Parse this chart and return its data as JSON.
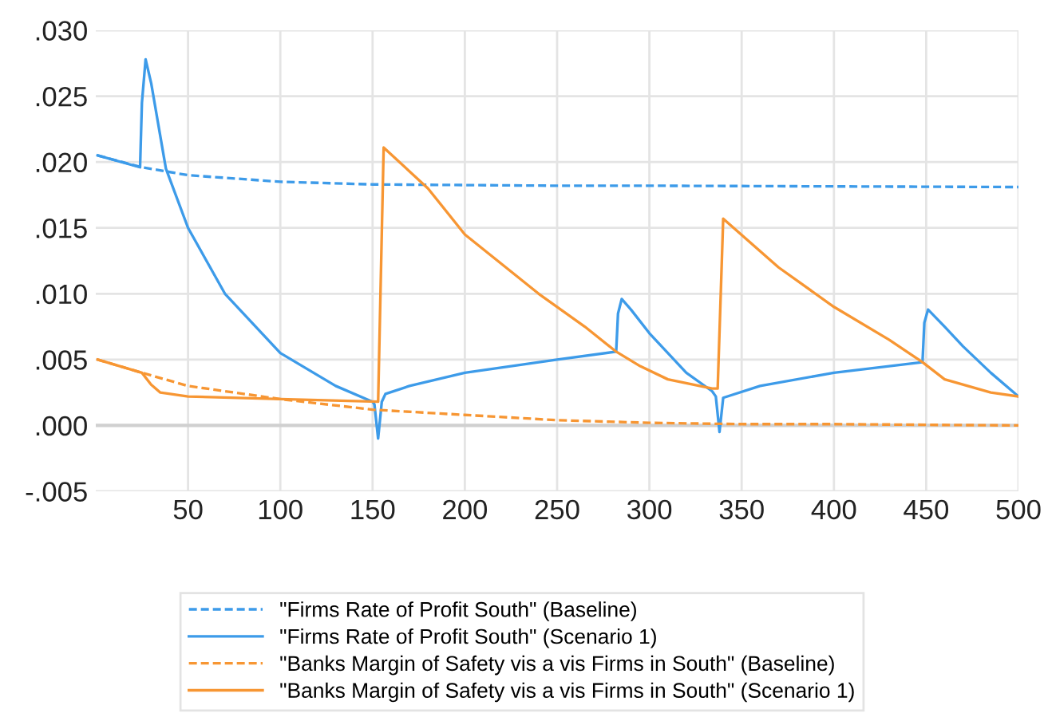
{
  "chart_data": {
    "type": "line",
    "xlim": [
      0,
      500
    ],
    "xticks": [
      50,
      100,
      150,
      200,
      250,
      300,
      350,
      400,
      450,
      500
    ],
    "ylim": [
      -0.005,
      0.03
    ],
    "yticks": [
      {
        "value": -0.005,
        "label": "-.005"
      },
      {
        "value": 0,
        "label": ".000"
      },
      {
        "value": 0.005,
        "label": ".005"
      },
      {
        "value": 0.01,
        "label": ".010"
      },
      {
        "value": 0.015,
        "label": ".015"
      },
      {
        "value": 0.02,
        "label": ".020"
      },
      {
        "value": 0.025,
        "label": ".025"
      },
      {
        "value": 0.03,
        "label": ".030"
      }
    ],
    "grid": true,
    "legend": "bottom",
    "ref_lines": [
      {
        "axis": "y",
        "value": 0,
        "color": "#d0d0d0"
      }
    ],
    "series": [
      {
        "name": "\"Firms Rate of Profit South\" (Baseline)",
        "color": "#3d9be9",
        "line_style": "dashed",
        "x": [
          1,
          25,
          50,
          100,
          150,
          250,
          300,
          500
        ],
        "values": [
          0.0205,
          0.0196,
          0.019,
          0.0185,
          0.0183,
          0.0182,
          0.0182,
          0.0181
        ]
      },
      {
        "name": "\"Firms Rate of Profit South\" (Scenario 1)",
        "color": "#3d9be9",
        "line_style": "solid",
        "x": [
          1,
          24,
          25,
          27,
          30,
          38,
          50,
          70,
          100,
          130,
          150,
          151,
          153,
          155,
          157,
          170,
          200,
          250,
          282,
          283,
          285,
          290,
          300,
          320,
          334,
          336,
          338,
          340,
          360,
          400,
          448,
          449,
          451,
          460,
          470,
          485,
          500
        ],
        "values": [
          0.0205,
          0.0196,
          0.0245,
          0.0278,
          0.026,
          0.0195,
          0.015,
          0.01,
          0.0055,
          0.003,
          0.0018,
          0.0016,
          -0.001,
          0.0018,
          0.0024,
          0.003,
          0.004,
          0.005,
          0.0056,
          0.0085,
          0.0096,
          0.0088,
          0.007,
          0.004,
          0.0026,
          0.0022,
          -0.0005,
          0.0021,
          0.003,
          0.004,
          0.0048,
          0.0078,
          0.0088,
          0.0075,
          0.006,
          0.004,
          0.0022
        ]
      },
      {
        "name": "\"Banks Margin of Safety vis a vis Firms in South\" (Baseline)",
        "color": "#f79633",
        "line_style": "dashed",
        "x": [
          1,
          25,
          50,
          100,
          150,
          200,
          250,
          300,
          350,
          400,
          500
        ],
        "values": [
          0.005,
          0.004,
          0.003,
          0.002,
          0.0012,
          0.0008,
          0.0004,
          0.0002,
          0.0001,
          0.0001,
          0.0
        ]
      },
      {
        "name": "\"Banks Margin of Safety vis a vis Firms in South\" (Scenario 1)",
        "color": "#f79633",
        "line_style": "solid",
        "x": [
          1,
          25,
          30,
          35,
          50,
          100,
          153,
          156,
          180,
          200,
          240,
          265,
          282,
          295,
          310,
          334,
          337,
          340,
          370,
          400,
          430,
          448,
          460,
          485,
          500
        ],
        "values": [
          0.005,
          0.004,
          0.0031,
          0.0025,
          0.0022,
          0.002,
          0.0018,
          0.0211,
          0.018,
          0.0145,
          0.01,
          0.0075,
          0.0056,
          0.0045,
          0.0035,
          0.0028,
          0.0028,
          0.0157,
          0.012,
          0.009,
          0.0065,
          0.0048,
          0.0035,
          0.0025,
          0.0022
        ]
      }
    ]
  }
}
